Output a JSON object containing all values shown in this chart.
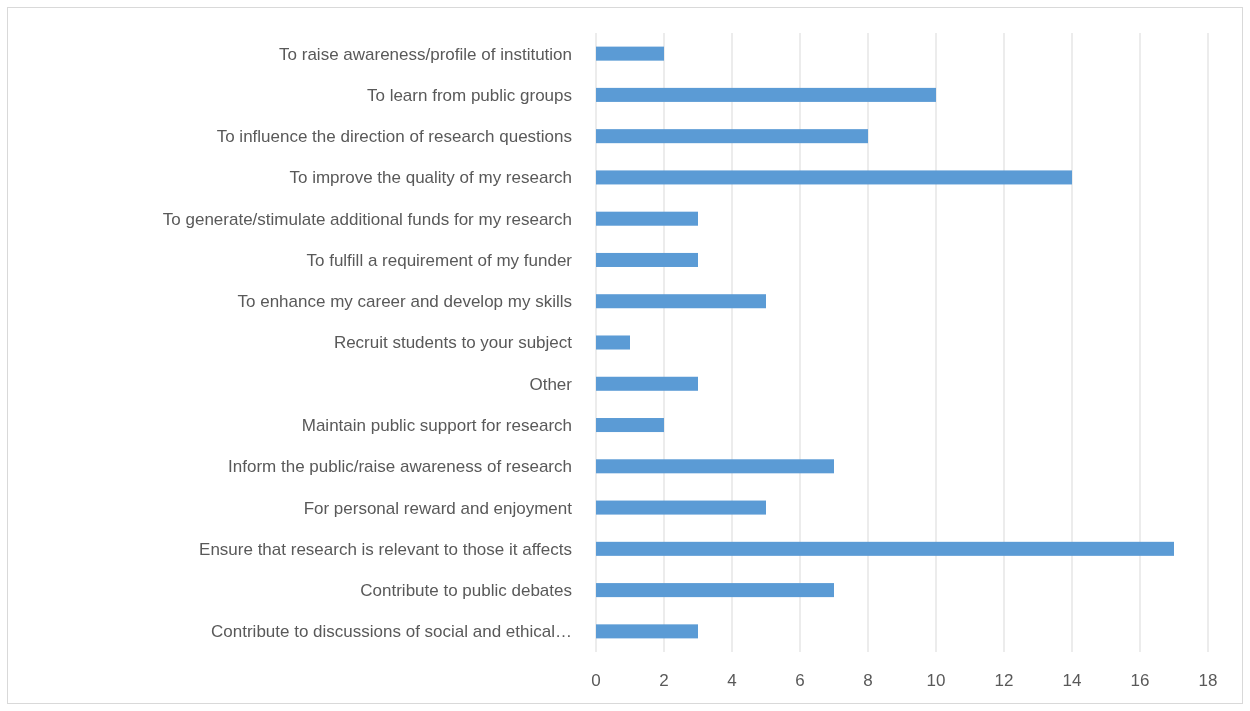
{
  "chart_data": {
    "type": "bar",
    "orientation": "horizontal",
    "categories": [
      "To raise awareness/profile of institution",
      "To learn from public groups",
      "To influence the direction of research questions",
      "To improve the quality of my research",
      "To generate/stimulate additional funds for my research",
      "To fulfill a requirement of my funder",
      "To enhance my career and develop my skills",
      "Recruit students to your subject",
      "Other",
      "Maintain public support for research",
      "Inform the public/raise awareness of research",
      "For personal reward and enjoyment",
      "Ensure that research is relevant to those it affects",
      "Contribute to public debates",
      "Contribute to discussions of social and ethical…"
    ],
    "values": [
      2,
      10,
      8,
      14,
      3,
      3,
      5,
      1,
      3,
      2,
      7,
      5,
      17,
      7,
      3
    ],
    "color": "#5b9bd5",
    "xlim": [
      0,
      18
    ],
    "xticks": [
      0,
      2,
      4,
      6,
      8,
      10,
      12,
      14,
      16,
      18
    ],
    "grid": "x"
  }
}
